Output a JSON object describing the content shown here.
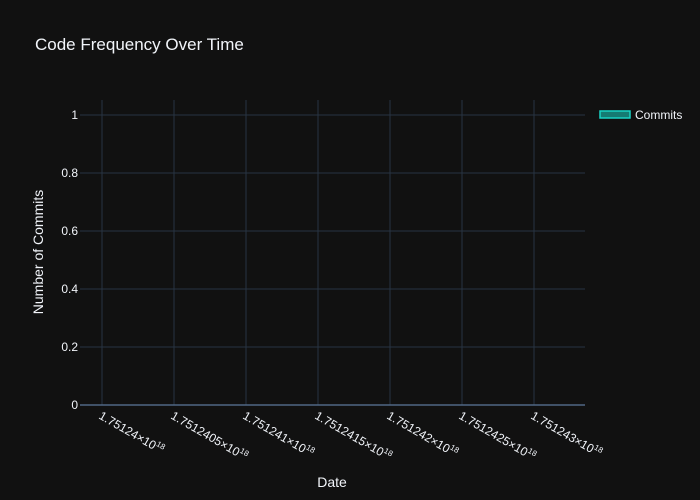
{
  "chart_data": {
    "type": "area",
    "title": "Code Frequency Over Time",
    "xlabel": "Date",
    "ylabel": "Number of Commits",
    "x_ticks": [
      {
        "mant": "1.75124",
        "exp": "18"
      },
      {
        "mant": "1.7512405",
        "exp": "18"
      },
      {
        "mant": "1.751241",
        "exp": "18"
      },
      {
        "mant": "1.7512415",
        "exp": "18"
      },
      {
        "mant": "1.751242",
        "exp": "18"
      },
      {
        "mant": "1.7512425",
        "exp": "18"
      },
      {
        "mant": "1.751243",
        "exp": "18"
      }
    ],
    "x_tick_values": [
      1.75124e+18,
      1.7512405e+18,
      1.751241e+18,
      1.7512415e+18,
      1.751242e+18,
      1.7512425e+18,
      1.751243e+18
    ],
    "xlim": [
      1.75124e+18,
      1.751243e+18
    ],
    "ylim": [
      0,
      1
    ],
    "y_ticks": [
      "0",
      "0.2",
      "0.4",
      "0.6",
      "0.8",
      "1"
    ],
    "y_tick_values": [
      0,
      0.2,
      0.4,
      0.6,
      0.8,
      1
    ],
    "grid": true,
    "legend_position": "top-right",
    "series": [
      {
        "name": "Commits",
        "x": [],
        "y": [],
        "color": "#19d3c5"
      }
    ]
  }
}
